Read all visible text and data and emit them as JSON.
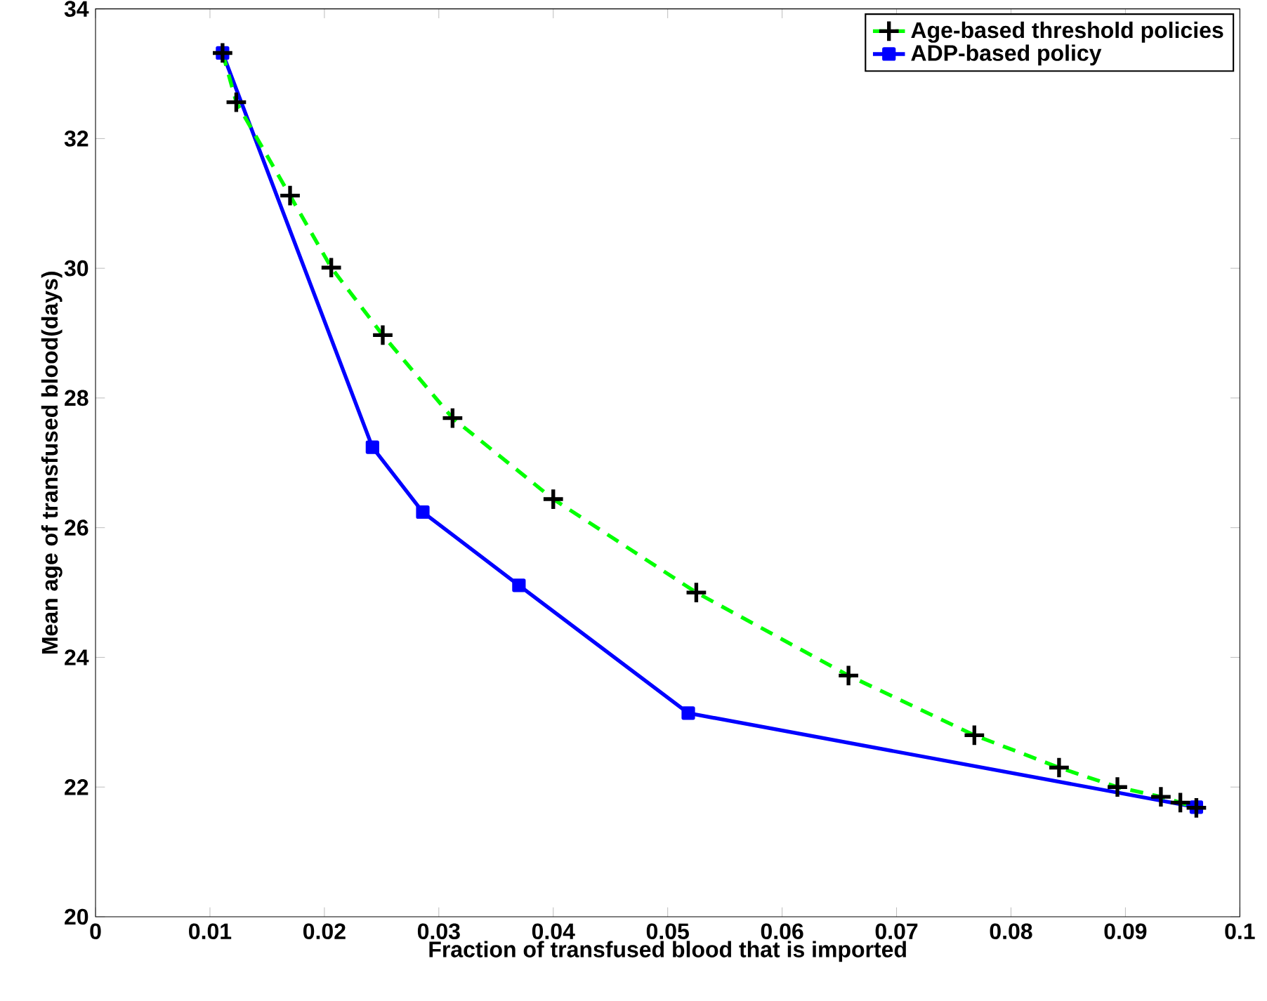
{
  "chart_data": {
    "type": "line",
    "xlabel": "Fraction of transfused blood that is imported",
    "ylabel": "Mean age of transfused blood(days)",
    "xlim": [
      0,
      0.1
    ],
    "ylim": [
      20,
      34
    ],
    "xticks": [
      0,
      0.01,
      0.02,
      0.03,
      0.04,
      0.05,
      0.06,
      0.07,
      0.08,
      0.09,
      0.1
    ],
    "yticks": [
      20,
      22,
      24,
      26,
      28,
      30,
      32,
      34
    ],
    "grid": false,
    "legend": "top right",
    "series": [
      {
        "name": "Age-based threshold policies",
        "color": "#00ff00",
        "marker": "cross",
        "line_style": "dashed",
        "x": [
          0.0111,
          0.0123,
          0.017,
          0.0206,
          0.0251,
          0.0312,
          0.04,
          0.0525,
          0.0658,
          0.0768,
          0.0842,
          0.0893,
          0.0931,
          0.0948,
          0.0962
        ],
        "values": [
          33.32,
          32.56,
          31.12,
          30.01,
          28.97,
          27.69,
          26.44,
          25.0,
          23.72,
          22.8,
          22.3,
          22.0,
          21.85,
          21.76,
          21.68
        ]
      },
      {
        "name": "ADP-based policy",
        "color": "#0000ff",
        "marker": "square",
        "line_style": "solid",
        "x": [
          0.0111,
          0.0242,
          0.0286,
          0.037,
          0.0518,
          0.0962
        ],
        "values": [
          33.32,
          27.24,
          26.24,
          25.11,
          23.14,
          21.69
        ]
      }
    ]
  }
}
